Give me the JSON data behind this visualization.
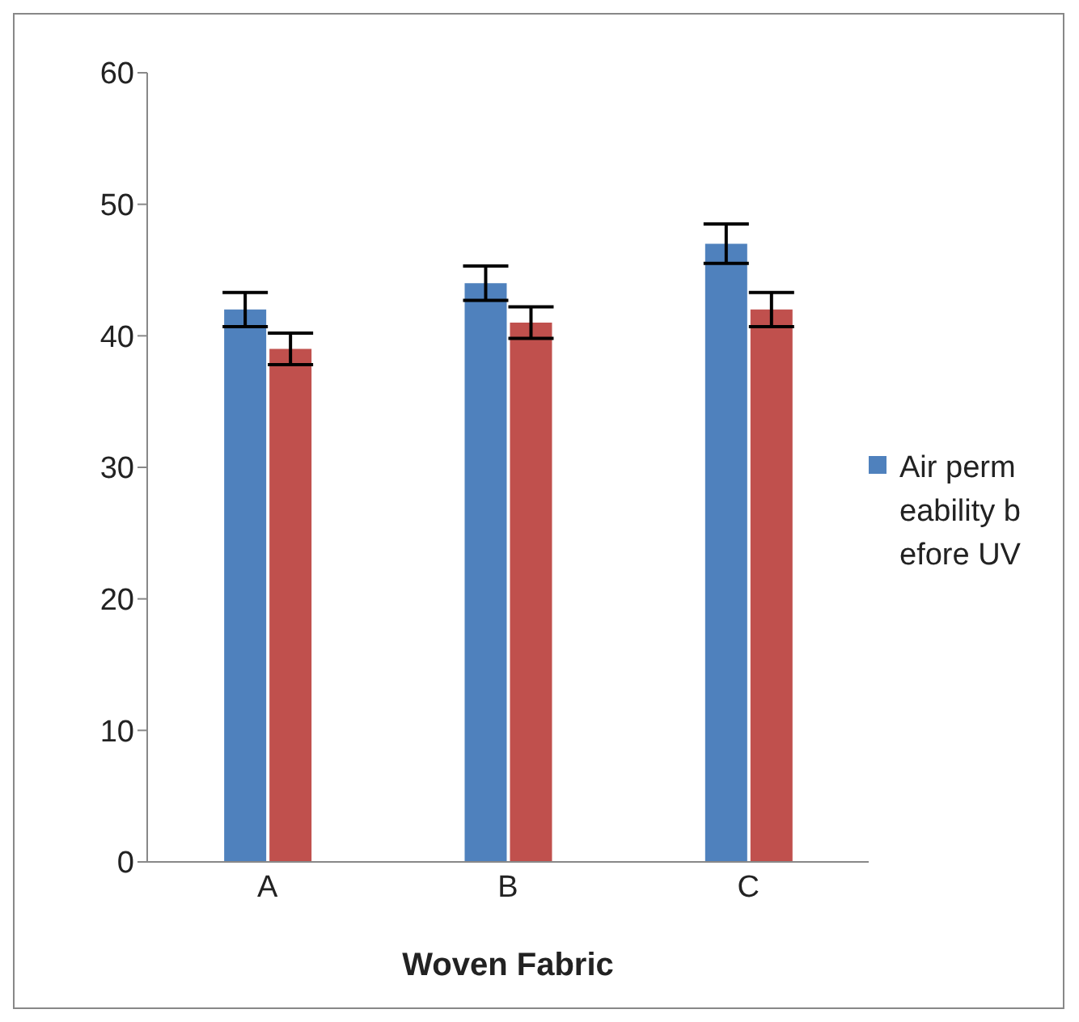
{
  "chart_data": {
    "type": "bar",
    "xlabel": "Woven Fabric",
    "categories": [
      "A",
      "B",
      "C"
    ],
    "series": [
      {
        "name": "Air permeability before UV",
        "color": "#4f81bd",
        "values": [
          42,
          44,
          47
        ],
        "errors": [
          1.3,
          1.3,
          1.5
        ]
      },
      {
        "color": "#c0504d",
        "values": [
          39,
          41,
          42
        ],
        "errors": [
          1.2,
          1.2,
          1.3
        ]
      }
    ],
    "ylim": [
      0,
      60
    ],
    "yticks": [
      0,
      10,
      20,
      30,
      40,
      50,
      60
    ],
    "legend": "right"
  }
}
